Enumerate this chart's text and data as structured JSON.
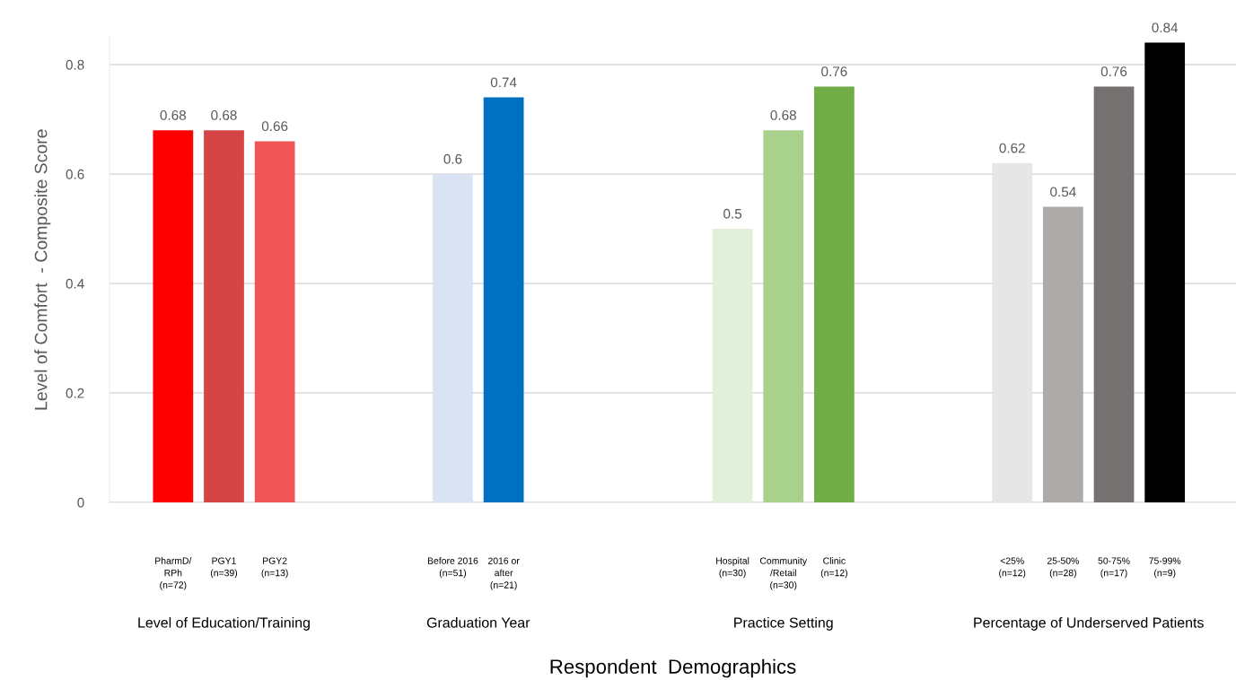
{
  "chart_data": {
    "type": "bar",
    "ylabel": "Level of Comfort  - Composite Score",
    "xlabel": "Respondent  Demographics",
    "categories": [
      "PharmD/\nRPh\n(n=72)",
      null,
      "PGY1\n(n=39)",
      null,
      "PGY2\n(n=13)",
      null,
      null,
      null,
      null,
      null,
      null,
      "Before 2016\n(n=51)",
      null,
      "2016 or\nafter\n(n=21)",
      null,
      null,
      null,
      null,
      null,
      null,
      null,
      null,
      "Hospital\n(n=30)",
      null,
      "Community\n/Retail\n(n=30)",
      null,
      "Clinic\n(n=12)",
      null,
      null,
      null,
      null,
      null,
      null,
      "<25%\n(n=12)",
      null,
      "25-50%\n(n=28)",
      null,
      "50-75%\n(n=17)",
      null,
      "75-99%\n(n=9)"
    ],
    "values": [
      0.68,
      null,
      0.68,
      null,
      0.66,
      null,
      null,
      null,
      null,
      null,
      null,
      0.6,
      null,
      0.74,
      null,
      null,
      null,
      null,
      null,
      null,
      null,
      null,
      0.5,
      null,
      0.68,
      null,
      0.76,
      null,
      null,
      null,
      null,
      null,
      null,
      0.62,
      null,
      0.54,
      null,
      0.76,
      null,
      0.84
    ],
    "colors": [
      "#ff0000",
      null,
      "#d64545",
      null,
      "#f05555",
      null,
      null,
      null,
      null,
      null,
      null,
      "#dae3f3",
      null,
      "#0070c0",
      null,
      null,
      null,
      null,
      null,
      null,
      null,
      null,
      "#e2efda",
      null,
      "#a9d18e",
      null,
      "#70ad47",
      null,
      null,
      null,
      null,
      null,
      null,
      "#e7e6e6",
      null,
      "#aeaaaa",
      null,
      "#767171",
      null,
      "#000000"
    ],
    "ylim": [
      0,
      0.85
    ],
    "yticks": [
      0,
      0.2,
      0.4,
      0.6,
      0.8
    ],
    "grid": "y",
    "data_labels": true,
    "annotations": [
      "Level of Education/Training",
      "Graduation Year",
      "Practice Setting",
      "Percentage of Underserved Patients"
    ]
  }
}
